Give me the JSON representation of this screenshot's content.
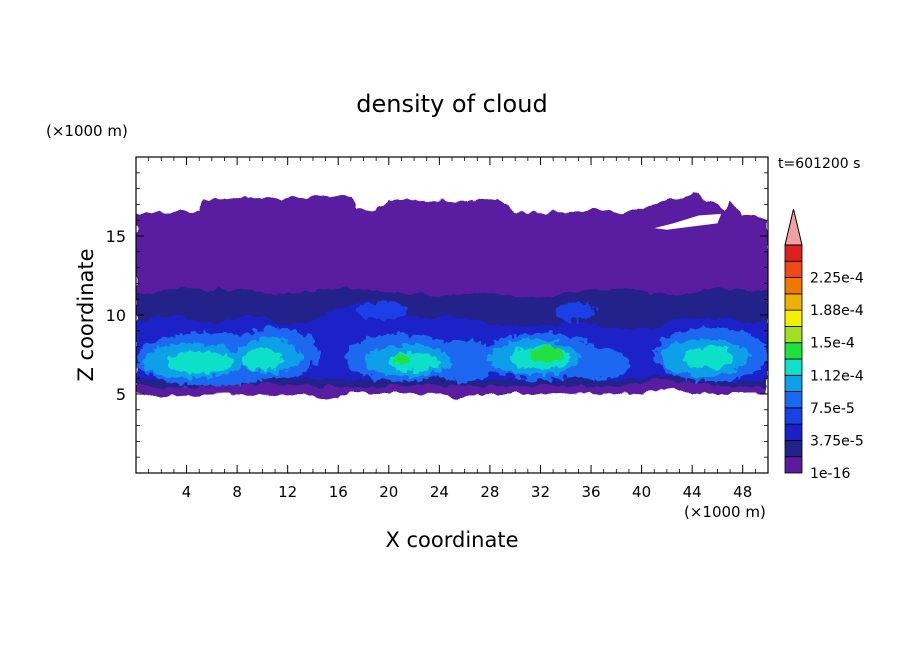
{
  "chart_data": {
    "type": "heatmap",
    "title": "density of cloud",
    "xlabel": "X coordinate",
    "ylabel": "Z coordinate",
    "x_unit": "(×1000 m)",
    "y_unit": "(×1000 m)",
    "time_label": "t=601200 s",
    "xlim": [
      0,
      50
    ],
    "ylim": [
      0,
      20
    ],
    "xticks": [
      4,
      8,
      12,
      16,
      20,
      24,
      28,
      32,
      36,
      40,
      44,
      48
    ],
    "yticks": [
      5,
      10,
      15
    ],
    "colorbar": {
      "levels": [
        1e-16,
        1.875e-05,
        3.75e-05,
        5.625e-05,
        7.5e-05,
        9.375e-05,
        0.0001125,
        0.00013125,
        0.00015,
        0.00016875,
        0.0001875,
        0.00020625,
        0.000225,
        0.00024375
      ],
      "tick_labels": [
        "1e-16",
        "3.75e-5",
        "7.5e-5",
        "1.12e-4",
        "1.5e-4",
        "1.88e-4",
        "2.25e-4"
      ],
      "colors": [
        "#5a1aa0",
        "#22208a",
        "#1a20c8",
        "#1a40e8",
        "#1a68f0",
        "#0ea0e8",
        "#10e0c8",
        "#20e040",
        "#a0e020",
        "#f0f000",
        "#f0b000",
        "#f07800",
        "#f04818",
        "#e02020"
      ],
      "extend_color": "#f0a0a0"
    },
    "field_summary": {
      "cloud_base_km": 5,
      "cloud_top_km": 17.5,
      "upper_layer": {
        "z_range": [
          11,
          17.5
        ],
        "density": 1e-16
      },
      "core_maxima": [
        {
          "x": 6,
          "z": 7,
          "density": 9.375e-05
        },
        {
          "x": 10,
          "z": 7,
          "density": 0.0001125
        },
        {
          "x": 22,
          "z": 7,
          "density": 0.0001125
        },
        {
          "x": 32.5,
          "z": 7.5,
          "density": 0.00013125
        },
        {
          "x": 45,
          "z": 7.5,
          "density": 9.375e-05
        }
      ]
    }
  }
}
